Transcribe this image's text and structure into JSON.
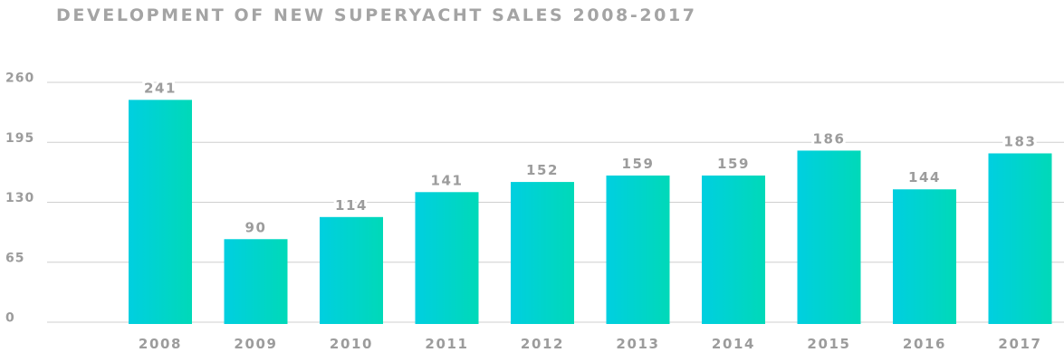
{
  "chart_data": {
    "type": "bar",
    "title": "DEVELOPMENT OF NEW SUPERYACHT SALES 2008-2017",
    "categories": [
      "2008",
      "2009",
      "2010",
      "2011",
      "2012",
      "2013",
      "2014",
      "2015",
      "2016",
      "2017"
    ],
    "values": [
      241,
      90,
      114,
      141,
      152,
      159,
      159,
      186,
      144,
      183
    ],
    "yticks": [
      0,
      65,
      130,
      195,
      260
    ],
    "ylim": [
      0,
      260
    ],
    "grid": true,
    "legend": "none",
    "colors": {
      "bar_start": "#00cfe0",
      "bar_end": "#00d9b8",
      "grid": "#cfcfcf",
      "text": "#9c9c9c"
    }
  }
}
